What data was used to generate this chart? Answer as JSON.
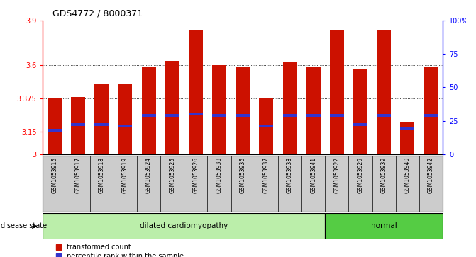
{
  "title": "GDS4772 / 8000371",
  "samples": [
    "GSM1053915",
    "GSM1053917",
    "GSM1053918",
    "GSM1053919",
    "GSM1053924",
    "GSM1053925",
    "GSM1053926",
    "GSM1053933",
    "GSM1053935",
    "GSM1053937",
    "GSM1053938",
    "GSM1053941",
    "GSM1053922",
    "GSM1053929",
    "GSM1053939",
    "GSM1053940",
    "GSM1053942"
  ],
  "transformed_count": [
    3.375,
    3.385,
    3.47,
    3.47,
    3.585,
    3.63,
    3.84,
    3.6,
    3.585,
    3.375,
    3.62,
    3.585,
    3.84,
    3.575,
    3.84,
    3.22,
    3.585
  ],
  "percentile_rank_pct": [
    18,
    22,
    22,
    21,
    29,
    29,
    30,
    29,
    29,
    21,
    29,
    29,
    29,
    22,
    29,
    19,
    29
  ],
  "disease_state": [
    "dilated cardiomyopathy",
    "dilated cardiomyopathy",
    "dilated cardiomyopathy",
    "dilated cardiomyopathy",
    "dilated cardiomyopathy",
    "dilated cardiomyopathy",
    "dilated cardiomyopathy",
    "dilated cardiomyopathy",
    "dilated cardiomyopathy",
    "dilated cardiomyopathy",
    "dilated cardiomyopathy",
    "dilated cardiomyopathy",
    "normal",
    "normal",
    "normal",
    "normal",
    "normal"
  ],
  "ymin": 3.0,
  "ymax": 3.9,
  "yticks_left": [
    3.0,
    3.15,
    3.375,
    3.6,
    3.9
  ],
  "yticks_left_labels": [
    "3",
    "3.15",
    "3.375",
    "3.6",
    "3.9"
  ],
  "yticks_right_pct": [
    0,
    25,
    50,
    75,
    100
  ],
  "bar_color": "#cc1100",
  "marker_color": "#3333cc",
  "dilated_color": "#bbeeaa",
  "normal_color": "#55cc44",
  "bg_color": "#cccccc",
  "legend_red": "transformed count",
  "legend_blue": "percentile rank within the sample",
  "disease_label": "disease state",
  "dilated_label": "dilated cardiomyopathy",
  "normal_label": "normal",
  "n_dilated": 12
}
